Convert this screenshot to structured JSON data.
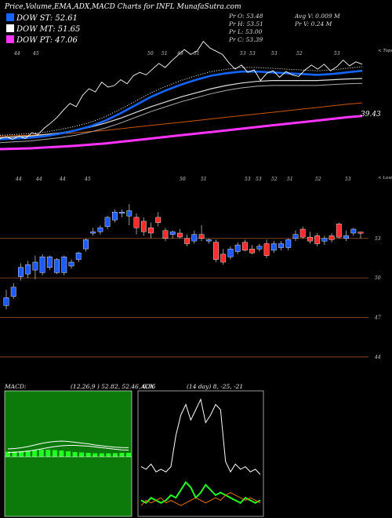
{
  "header": {
    "title": "Price,Volume,EMA,ADX,MACD Charts for INFL",
    "site": "MunafaSutra.com"
  },
  "legend": [
    {
      "label": "DOW ST: 52.61",
      "color": "#1565ff"
    },
    {
      "label": "DOW MT: 51.65",
      "color": "#ffffff"
    },
    {
      "label": "DOW PT: 47.06",
      "color": "#ff33ff"
    }
  ],
  "stats": {
    "pr_o": "Pr  O: 53.48",
    "pr_h": "Pr  H: 53.51",
    "pr_l": "Pr  L: 53.00",
    "pr_c": "Pr  C: 53.39",
    "avg_v": "Avg V: 0.009 M",
    "pr_v": "Pr  V: 0.24  M"
  },
  "ema_panel": {
    "top_tick_labels": [
      "44",
      "45",
      "50",
      "51",
      "49",
      "51",
      "53",
      "53",
      "53",
      "52",
      "53"
    ],
    "right_label": "< Tops",
    "last_value_label": "39.43",
    "colors": {
      "price": "#ffffff",
      "ema_st": "#1565ff",
      "ema_mt1": "#dddddd",
      "ema_mt2": "#aaaaaa",
      "ema_lt": "#cc5500",
      "ema_pt": "#ff33ff"
    }
  },
  "candle_panel": {
    "top_tick_labels": [
      "44",
      "44",
      "44",
      "45",
      "50",
      "51",
      "53",
      "53",
      "52",
      "51",
      "52",
      "53"
    ],
    "right_label": "< Lows",
    "y_axis_labels": [
      "53",
      "50",
      "47",
      "44"
    ],
    "colors": {
      "up": "#1e5bff",
      "down": "#ff2a2a",
      "gridline": "#a0522d"
    }
  },
  "macd_panel": {
    "label": "MACD",
    "params": "(12,26,9 ) 52.82, 52.46, 0.36",
    "colors": {
      "bg": "#0b7a0b",
      "histogram": "#22ff22",
      "line": "#ffffff"
    }
  },
  "adx_panel": {
    "label": "ADX",
    "params": "(14 day) 8, -25, -21",
    "colors": {
      "adx": "#ffffff",
      "plus_di": "#22ff22",
      "minus_di": "#e07000"
    }
  },
  "chart_data": [
    {
      "type": "line",
      "panel": "price-ema",
      "series": [
        {
          "name": "DOW ST",
          "values": [
            44.2,
            44.3,
            44.4,
            44.6,
            44.9,
            45.3,
            45.8,
            46.5,
            47.4,
            48.4,
            49.4,
            50.2,
            50.9,
            51.5,
            52.0,
            52.3,
            52.5,
            52.5,
            52.4,
            52.3,
            52.2,
            52.1,
            52.2,
            52.4,
            52.6
          ]
        },
        {
          "name": "DOW MT",
          "values": [
            44.4,
            44.5,
            44.6,
            44.8,
            45.0,
            45.3,
            45.7,
            46.2,
            46.8,
            47.5,
            48.2,
            48.8,
            49.4,
            49.9,
            50.4,
            50.8,
            51.1,
            51.3,
            51.4,
            51.4,
            51.4,
            51.4,
            51.5,
            51.6,
            51.65
          ]
        },
        {
          "name": "DOW PT",
          "values": [
            43.0,
            43.05,
            43.1,
            43.2,
            43.3,
            43.4,
            43.55,
            43.7,
            43.9,
            44.1,
            44.3,
            44.5,
            44.7,
            44.9,
            45.1,
            45.3,
            45.5,
            45.7,
            45.9,
            46.1,
            46.3,
            46.5,
            46.7,
            46.9,
            47.06
          ]
        }
      ]
    },
    {
      "type": "candlestick",
      "panel": "price",
      "ylim": [
        42.5,
        56.5
      ],
      "candles": [
        {
          "o": 47.9,
          "h": 49.1,
          "l": 47.6,
          "c": 48.5
        },
        {
          "o": 48.6,
          "h": 49.6,
          "l": 48.4,
          "c": 49.3
        },
        {
          "o": 50.1,
          "h": 51.1,
          "l": 49.8,
          "c": 50.8
        },
        {
          "o": 50.3,
          "h": 51.3,
          "l": 50.0,
          "c": 51.0
        },
        {
          "o": 50.6,
          "h": 51.7,
          "l": 49.9,
          "c": 51.2
        },
        {
          "o": 50.4,
          "h": 51.8,
          "l": 50.2,
          "c": 51.6
        },
        {
          "o": 50.8,
          "h": 51.7,
          "l": 50.6,
          "c": 51.6
        },
        {
          "o": 50.4,
          "h": 51.5,
          "l": 50.3,
          "c": 51.4
        },
        {
          "o": 50.4,
          "h": 51.7,
          "l": 50.2,
          "c": 51.6
        },
        {
          "o": 50.9,
          "h": 51.4,
          "l": 50.7,
          "c": 51.2
        },
        {
          "o": 51.4,
          "h": 52.0,
          "l": 51.2,
          "c": 51.9
        },
        {
          "o": 52.2,
          "h": 53.0,
          "l": 52.0,
          "c": 52.9
        },
        {
          "o": 53.4,
          "h": 53.8,
          "l": 53.2,
          "c": 53.5
        },
        {
          "o": 53.5,
          "h": 54.0,
          "l": 53.3,
          "c": 53.8
        },
        {
          "o": 53.9,
          "h": 54.7,
          "l": 53.7,
          "c": 54.6
        },
        {
          "o": 54.4,
          "h": 55.2,
          "l": 54.2,
          "c": 55.0
        },
        {
          "o": 54.9,
          "h": 55.2,
          "l": 54.6,
          "c": 55.0
        },
        {
          "o": 54.7,
          "h": 55.6,
          "l": 54.0,
          "c": 55.1
        },
        {
          "o": 54.6,
          "h": 54.9,
          "l": 53.3,
          "c": 53.8
        },
        {
          "o": 54.3,
          "h": 54.6,
          "l": 53.2,
          "c": 53.5
        },
        {
          "o": 53.8,
          "h": 54.2,
          "l": 53.0,
          "c": 53.4
        },
        {
          "o": 54.6,
          "h": 55.0,
          "l": 53.9,
          "c": 54.2
        },
        {
          "o": 53.6,
          "h": 53.8,
          "l": 52.8,
          "c": 53.0
        },
        {
          "o": 53.3,
          "h": 53.6,
          "l": 53.0,
          "c": 53.5
        },
        {
          "o": 53.4,
          "h": 53.7,
          "l": 53.0,
          "c": 53.1
        },
        {
          "o": 53.0,
          "h": 53.3,
          "l": 52.4,
          "c": 52.6
        },
        {
          "o": 52.8,
          "h": 53.6,
          "l": 52.6,
          "c": 53.3
        },
        {
          "o": 53.3,
          "h": 54.0,
          "l": 52.8,
          "c": 53.0
        },
        {
          "o": 52.8,
          "h": 53.0,
          "l": 52.6,
          "c": 52.9
        },
        {
          "o": 52.7,
          "h": 52.9,
          "l": 51.2,
          "c": 51.4
        },
        {
          "o": 51.8,
          "h": 52.2,
          "l": 51.0,
          "c": 51.2
        },
        {
          "o": 51.6,
          "h": 52.4,
          "l": 51.4,
          "c": 52.2
        },
        {
          "o": 52.0,
          "h": 52.7,
          "l": 51.8,
          "c": 52.5
        },
        {
          "o": 52.7,
          "h": 52.9,
          "l": 52.0,
          "c": 52.1
        },
        {
          "o": 52.2,
          "h": 52.5,
          "l": 51.8,
          "c": 51.9
        },
        {
          "o": 52.2,
          "h": 52.6,
          "l": 52.0,
          "c": 52.4
        },
        {
          "o": 52.6,
          "h": 52.9,
          "l": 51.5,
          "c": 51.7
        },
        {
          "o": 52.1,
          "h": 52.8,
          "l": 51.9,
          "c": 52.6
        },
        {
          "o": 52.3,
          "h": 52.8,
          "l": 52.1,
          "c": 52.6
        },
        {
          "o": 52.3,
          "h": 53.0,
          "l": 52.1,
          "c": 52.9
        },
        {
          "o": 53.0,
          "h": 53.6,
          "l": 52.8,
          "c": 53.3
        },
        {
          "o": 53.7,
          "h": 53.9,
          "l": 53.0,
          "c": 53.1
        },
        {
          "o": 53.1,
          "h": 53.5,
          "l": 52.6,
          "c": 52.8
        },
        {
          "o": 53.2,
          "h": 53.4,
          "l": 52.4,
          "c": 52.6
        },
        {
          "o": 52.8,
          "h": 53.2,
          "l": 52.5,
          "c": 53.0
        },
        {
          "o": 53.2,
          "h": 53.4,
          "l": 52.7,
          "c": 52.9
        },
        {
          "o": 54.1,
          "h": 54.2,
          "l": 53.0,
          "c": 53.1
        },
        {
          "o": 53.0,
          "h": 53.6,
          "l": 52.8,
          "c": 53.2
        },
        {
          "o": 53.4,
          "h": 53.8,
          "l": 53.2,
          "c": 53.7
        },
        {
          "o": 53.48,
          "h": 53.51,
          "l": 53.0,
          "c": 53.39
        }
      ]
    },
    {
      "type": "line",
      "panel": "macd",
      "series": [
        {
          "name": "MACD",
          "values": [
            0.2,
            0.25,
            0.35,
            0.5,
            0.7,
            0.9,
            1.05,
            1.15,
            1.2,
            1.15,
            1.05,
            0.95,
            0.85,
            0.7,
            0.6,
            0.5,
            0.42,
            0.38,
            0.36
          ]
        },
        {
          "name": "Signal",
          "values": [
            0.15,
            0.18,
            0.24,
            0.32,
            0.45,
            0.6,
            0.76,
            0.9,
            1.0,
            1.05,
            1.05,
            1.0,
            0.95,
            0.86,
            0.76,
            0.66,
            0.56,
            0.48,
            0.46
          ]
        }
      ]
    },
    {
      "type": "line",
      "panel": "adx",
      "series": [
        {
          "name": "ADX",
          "values": [
            18,
            17,
            19,
            16,
            17,
            16,
            18,
            30,
            38,
            42,
            36,
            40,
            44,
            35,
            38,
            42,
            40,
            20,
            16,
            19,
            17,
            18,
            16,
            17,
            15
          ]
        },
        {
          "name": "+DI",
          "values": [
            5,
            4,
            6,
            5,
            4,
            5,
            7,
            6,
            9,
            12,
            10,
            6,
            8,
            11,
            9,
            7,
            8,
            7,
            6,
            5,
            4,
            6,
            5,
            4,
            5
          ]
        },
        {
          "name": "-DI",
          "values": [
            3,
            5,
            4,
            5,
            6,
            4,
            5,
            4,
            3,
            4,
            5,
            6,
            5,
            4,
            5,
            6,
            5,
            7,
            8,
            7,
            6,
            5,
            6,
            5,
            4
          ]
        }
      ]
    }
  ]
}
